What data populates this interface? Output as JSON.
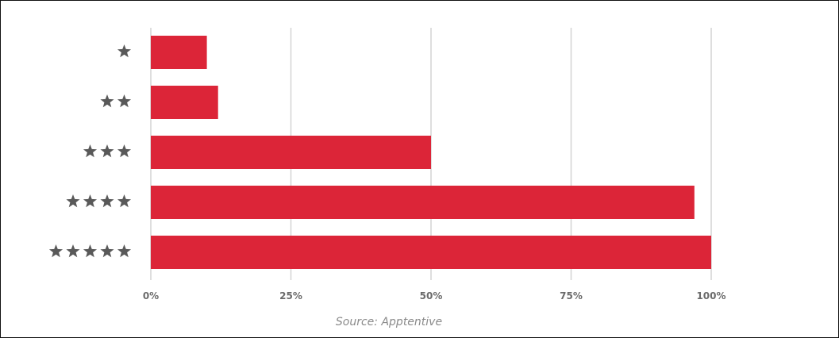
{
  "chart_data": {
    "type": "bar",
    "orientation": "horizontal",
    "categories": [
      "★",
      "★★",
      "★★★",
      "★★★★",
      "★★★★★"
    ],
    "stars": [
      1,
      2,
      3,
      4,
      5
    ],
    "values": [
      10,
      12,
      50,
      97,
      100
    ],
    "x_ticks": [
      "0%",
      "25%",
      "50%",
      "75%",
      "100%"
    ],
    "x_tick_values": [
      0,
      25,
      50,
      75,
      100
    ],
    "xlim": [
      0,
      100
    ],
    "grid": "vertical",
    "title": "",
    "xlabel": "",
    "ylabel": "",
    "source": "Source: Apptentive"
  },
  "colors": {
    "bar": "#dc2538",
    "grid": "#d4d4d4",
    "star": "#595959",
    "tick_text": "#6b6b6b",
    "source_text": "#8a8a8a"
  },
  "icons": {
    "category": "star-icon"
  }
}
